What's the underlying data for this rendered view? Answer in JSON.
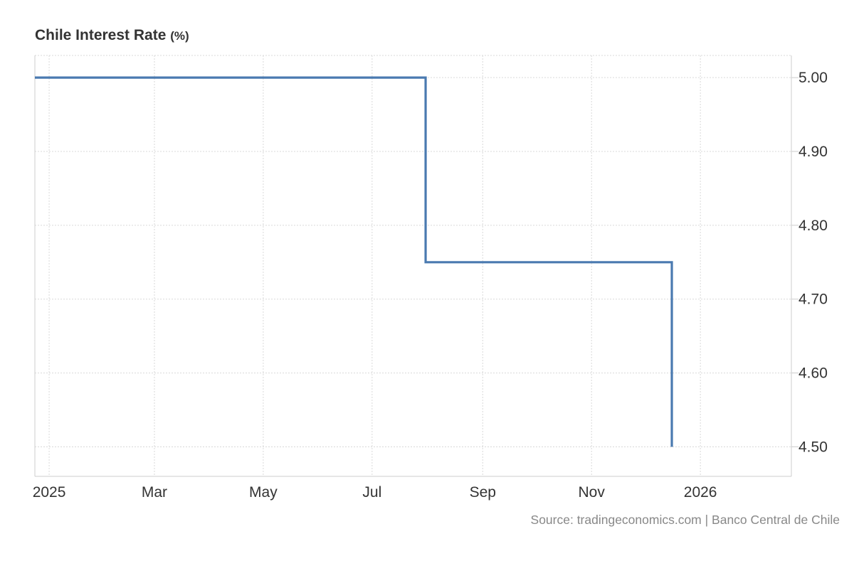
{
  "header": {
    "title": "Chile Interest Rate",
    "unit": "(%)"
  },
  "footer": {
    "source": "Source: tradingeconomics.com | Banco Central de Chile"
  },
  "colors": {
    "series": "#4a7ab0",
    "grid": "#d9d9d9",
    "axis": "#cccccc"
  },
  "chart_data": {
    "type": "line",
    "title": "Chile Interest Rate (%)",
    "step": true,
    "x_axis": {
      "type": "date",
      "range": [
        "2024-12-24",
        "2026-02-21"
      ],
      "ticks": [
        {
          "date": "2025-01-01",
          "label": "2025"
        },
        {
          "date": "2025-03-01",
          "label": "Mar"
        },
        {
          "date": "2025-05-01",
          "label": "May"
        },
        {
          "date": "2025-07-01",
          "label": "Jul"
        },
        {
          "date": "2025-09-01",
          "label": "Sep"
        },
        {
          "date": "2025-11-01",
          "label": "Nov"
        },
        {
          "date": "2026-01-01",
          "label": "2026"
        }
      ]
    },
    "y_axis": {
      "position": "right",
      "ylim": [
        4.46,
        5.03
      ],
      "ticks": [
        5.0,
        4.9,
        4.8,
        4.7,
        4.6,
        4.5
      ],
      "tick_labels": [
        "5.00",
        "4.90",
        "4.80",
        "4.70",
        "4.60",
        "4.50"
      ]
    },
    "grid": true,
    "legend": "none",
    "series": [
      {
        "points": [
          {
            "x": "2024-12-24",
            "y": 5.0
          },
          {
            "x": "2025-07-31",
            "y": 4.75
          },
          {
            "x": "2025-12-16",
            "y": 4.5
          }
        ]
      }
    ]
  }
}
